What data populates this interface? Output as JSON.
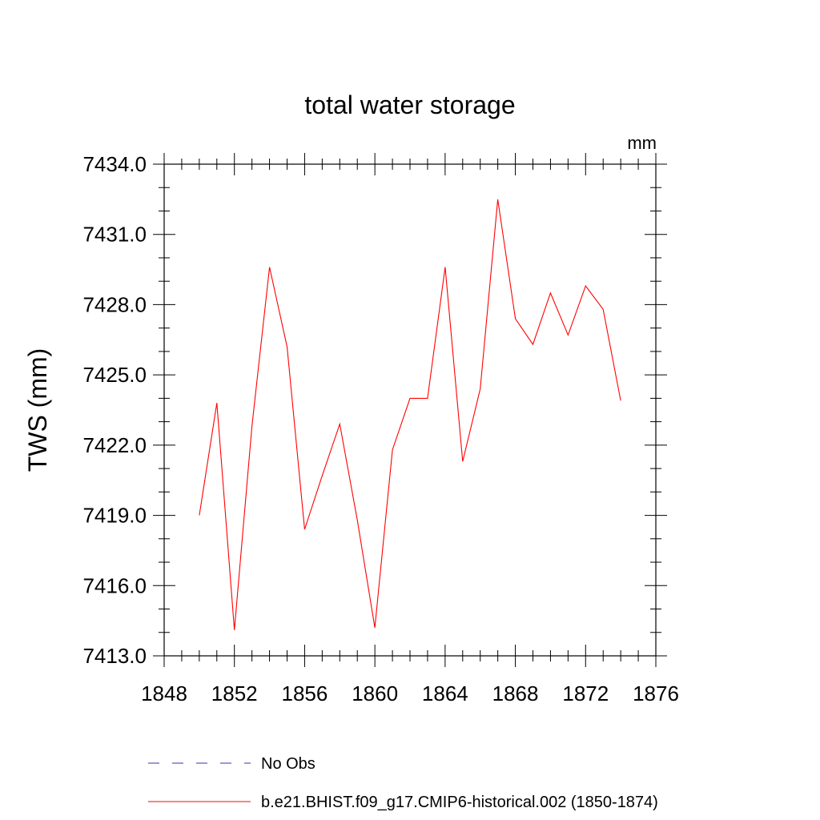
{
  "chart_data": {
    "type": "line",
    "title": "total water storage",
    "units": "mm",
    "xlabel": "",
    "ylabel": "TWS  (mm)",
    "xlim": [
      1848,
      1876
    ],
    "ylim": [
      7413.0,
      7434.0
    ],
    "x_ticks": [
      "1848",
      "1852",
      "1856",
      "1860",
      "1864",
      "1868",
      "1872",
      "1876"
    ],
    "y_ticks": [
      "7413.0",
      "7416.0",
      "7419.0",
      "7422.0",
      "7425.0",
      "7428.0",
      "7431.0",
      "7434.0"
    ],
    "grid": false,
    "legend_position": "bottom",
    "series": [
      {
        "name": "No Obs",
        "color": "#3333aa",
        "style": "dashed",
        "x": [],
        "values": []
      },
      {
        "name": "b.e21.BHIST.f09_g17.CMIP6-historical.002 (1850-1874)",
        "color": "#ff0000",
        "style": "solid",
        "x": [
          1850,
          1851,
          1852,
          1853,
          1854,
          1855,
          1856,
          1857,
          1858,
          1859,
          1860,
          1861,
          1862,
          1863,
          1864,
          1865,
          1866,
          1867,
          1868,
          1869,
          1870,
          1871,
          1872,
          1873,
          1874
        ],
        "values": [
          7419.0,
          7423.8,
          7414.1,
          7422.8,
          7429.6,
          7426.2,
          7418.4,
          7420.7,
          7422.9,
          7418.8,
          7414.2,
          7421.8,
          7424.0,
          7424.0,
          7429.6,
          7421.3,
          7424.4,
          7432.5,
          7427.4,
          7426.3,
          7428.5,
          7426.7,
          7428.8,
          7427.8,
          7423.9
        ]
      }
    ]
  }
}
